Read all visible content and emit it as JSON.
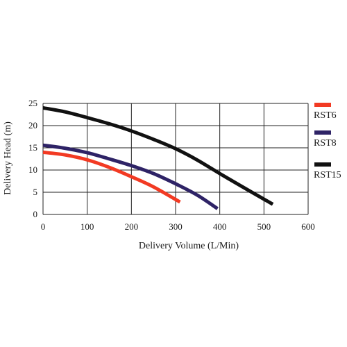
{
  "chart_data": {
    "type": "line",
    "title": "",
    "xlabel": "Delivery Volume (L/Min)",
    "ylabel": "Delivery Head (m)",
    "xlim": [
      0,
      600
    ],
    "ylim": [
      0,
      25
    ],
    "xticks": [
      0,
      100,
      200,
      300,
      400,
      500,
      600
    ],
    "yticks": [
      0,
      5,
      10,
      15,
      20,
      25
    ],
    "grid": true,
    "legend_position": "right",
    "series": [
      {
        "name": "RST6",
        "color": "#f23a23",
        "x": [
          0,
          50,
          100,
          150,
          200,
          250,
          310
        ],
        "y": [
          14,
          13.4,
          12.3,
          10.6,
          8.5,
          6.2,
          2.8
        ]
      },
      {
        "name": "RST8",
        "color": "#2e2366",
        "x": [
          0,
          50,
          100,
          150,
          200,
          250,
          300,
          350,
          395
        ],
        "y": [
          15.6,
          14.9,
          13.9,
          12.5,
          11,
          9.2,
          6.9,
          4.3,
          1.3
        ]
      },
      {
        "name": "RST15",
        "color": "#111111",
        "x": [
          0,
          50,
          100,
          150,
          200,
          250,
          300,
          350,
          400,
          450,
          520
        ],
        "y": [
          24,
          23.1,
          21.8,
          20.4,
          18.8,
          16.9,
          14.8,
          12.2,
          9.2,
          6.3,
          2.3
        ]
      }
    ]
  }
}
